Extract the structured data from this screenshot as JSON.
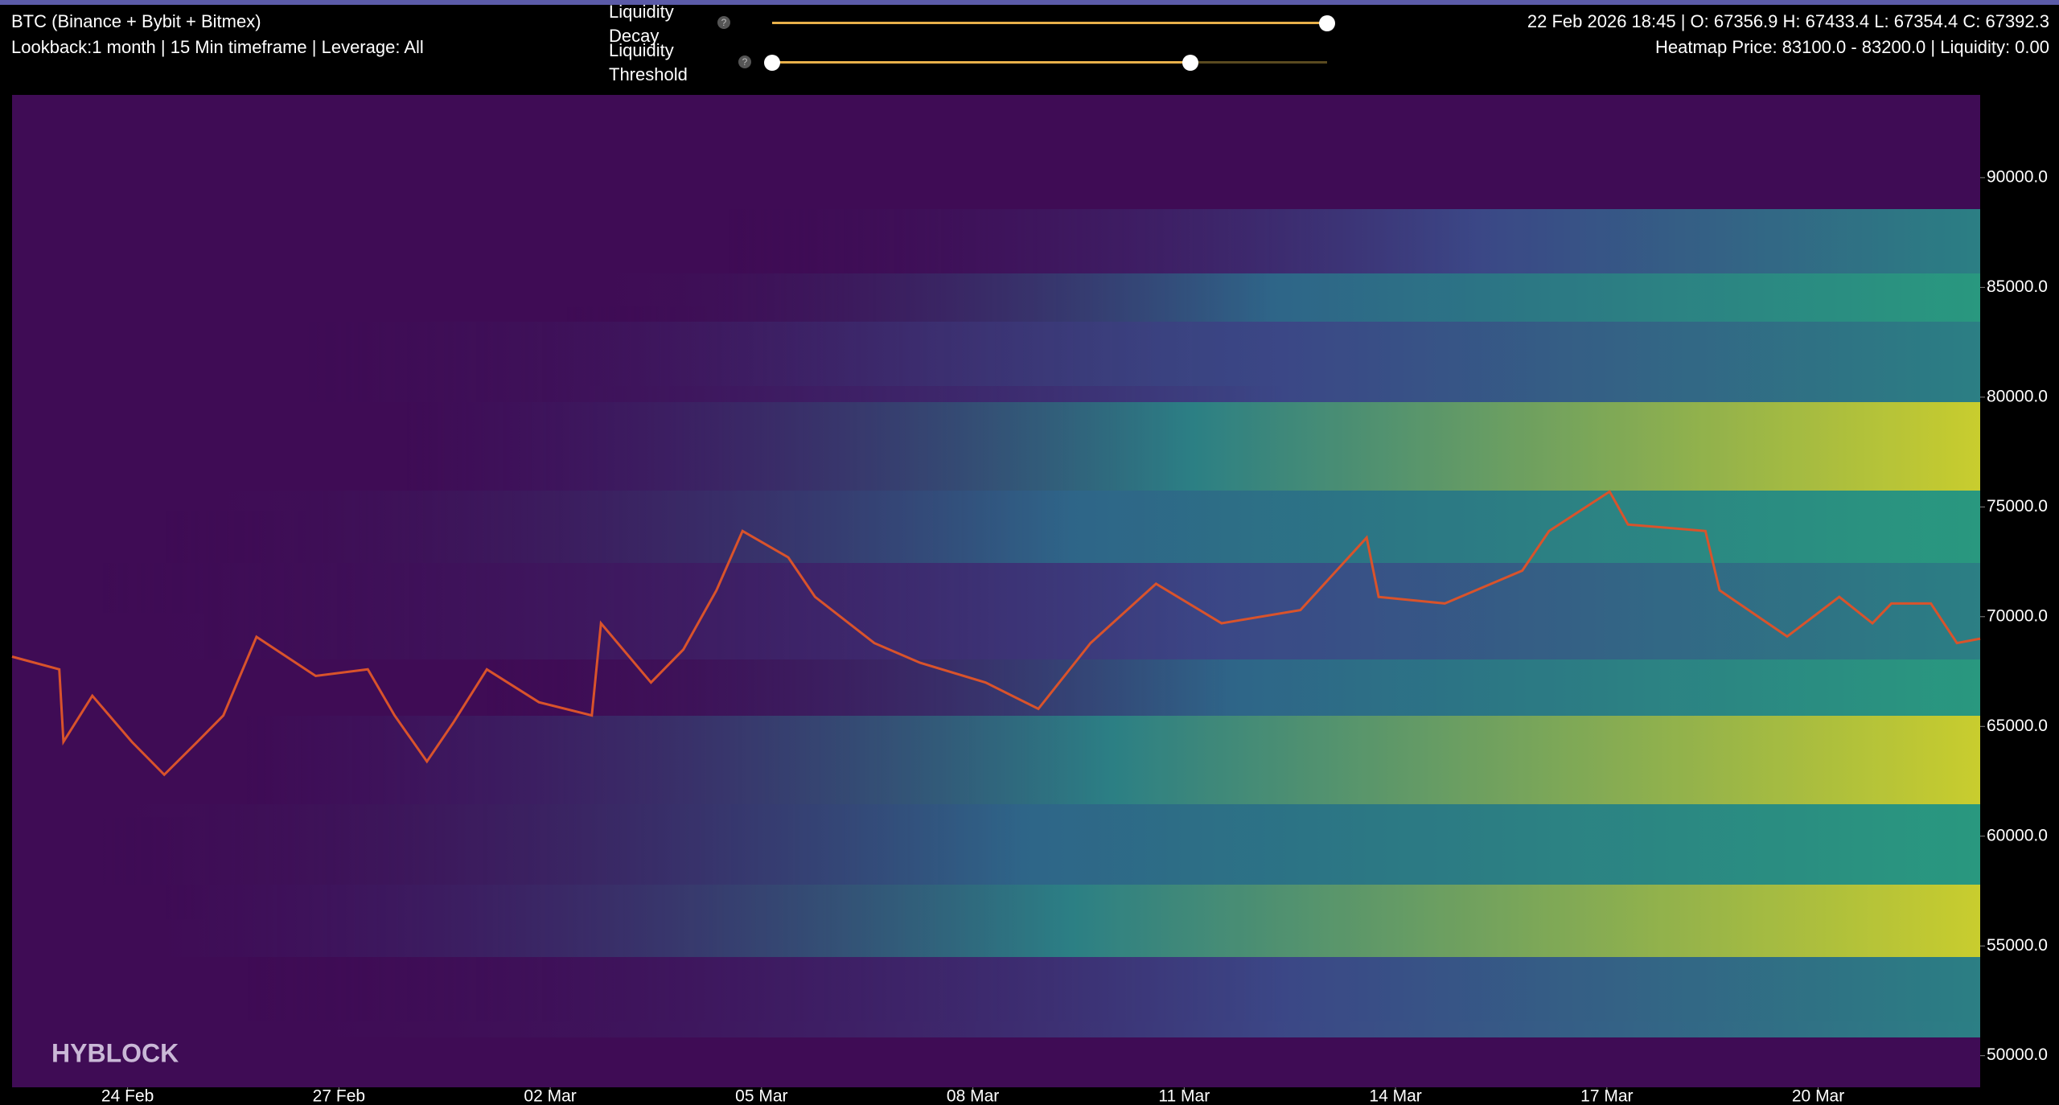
{
  "header": {
    "title": "BTC (Binance + Bybit + Bitmex)",
    "subtitle": "Lookback:1 month | 15 Min timeframe | Leverage: All",
    "decay_label": "Liquidity Decay",
    "threshold_label": "Liquidity Threshold",
    "ohlc": "22 Feb 2026 18:45 | O: 67356.9 H: 67433.4 L: 67354.4 C: 67392.3",
    "heatmap_info": "Heatmap Price: 83100.0 - 83200.0 | Liquidity: 0.00"
  },
  "chart_data": {
    "type": "line",
    "watermark": "HYBLOCK",
    "color": "#d9532b",
    "x": [
      -1.64,
      -0.97,
      -0.91,
      -0.5,
      0.06,
      0.52,
      0.99,
      1.36,
      1.83,
      2.67,
      3.41,
      3.79,
      4.25,
      4.63,
      5.1,
      5.84,
      6.59,
      6.72,
      7.43,
      7.89,
      8.36,
      8.73,
      9.38,
      9.76,
      10.6,
      11.25,
      12.18,
      12.93,
      13.67,
      14.6,
      15.53,
      16.65,
      17.59,
      17.76,
      18.7,
      19.8,
      20.18,
      21.04,
      21.3,
      22.4,
      22.6,
      23.56,
      24.3,
      24.77,
      25.04,
      25.6,
      25.97,
      26.3
    ],
    "values": [
      68180,
      67600,
      64300,
      66400,
      64300,
      62800,
      64300,
      65500,
      69080,
      67300,
      67600,
      65500,
      63400,
      65200,
      67600,
      66100,
      65500,
      69700,
      67000,
      68500,
      71200,
      73900,
      72700,
      70900,
      68800,
      67900,
      67000,
      65800,
      68800,
      71500,
      69700,
      70300,
      73600,
      70900,
      70600,
      72100,
      73900,
      75700,
      74200,
      73900,
      71200,
      69100,
      70900,
      69700,
      70600,
      70600,
      68800,
      69000
    ],
    "xlim": [
      -1.64,
      26.3
    ],
    "xticks": [
      {
        "value": 0,
        "label": "24 Feb"
      },
      {
        "value": 3,
        "label": "27 Feb"
      },
      {
        "value": 6,
        "label": "02 Mar"
      },
      {
        "value": 9,
        "label": "05 Mar"
      },
      {
        "value": 12,
        "label": "08 Mar"
      },
      {
        "value": 15,
        "label": "11 Mar"
      },
      {
        "value": 18,
        "label": "14 Mar"
      },
      {
        "value": 21,
        "label": "17 Mar"
      },
      {
        "value": 24,
        "label": "20 Mar"
      }
    ],
    "ylim": [
      48560,
      93770
    ],
    "yticks": [
      {
        "value": 50000,
        "label": "50000.0"
      },
      {
        "value": 55000,
        "label": "55000.0"
      },
      {
        "value": 60000,
        "label": "60000.0"
      },
      {
        "value": 65000,
        "label": "65000.0"
      },
      {
        "value": 70000,
        "label": "70000.0"
      },
      {
        "value": 75000,
        "label": "75000.0"
      },
      {
        "value": 80000,
        "label": "80000.0"
      },
      {
        "value": 85000,
        "label": "85000.0"
      },
      {
        "value": 90000,
        "label": "90000.0"
      }
    ]
  }
}
